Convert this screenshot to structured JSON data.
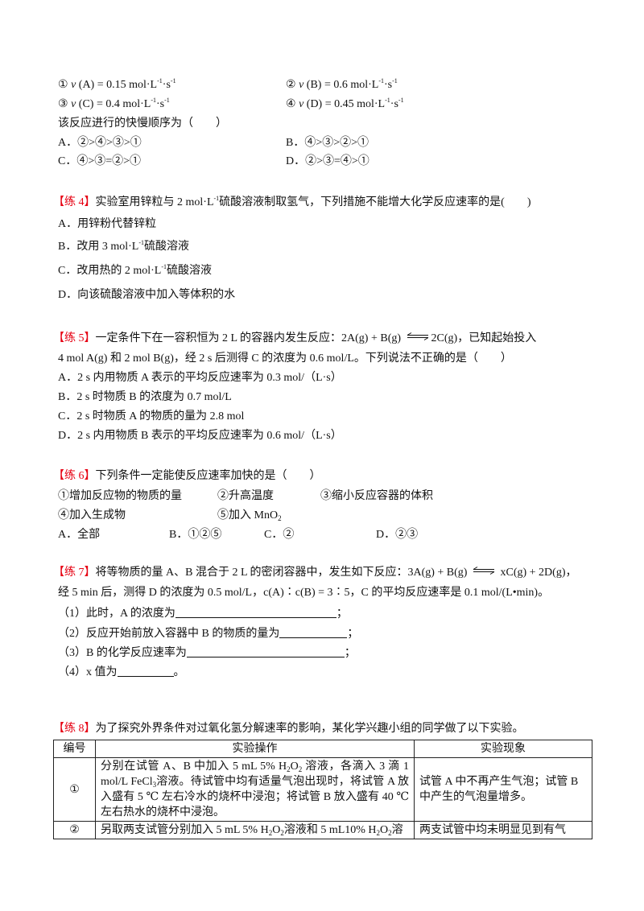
{
  "q3": {
    "items": [
      [
        {
          "t": "① "
        },
        {
          "i": "v"
        },
        {
          "t": "  (A) = 0.15 mol·L"
        },
        {
          "sup": "-1"
        },
        {
          "t": "·s"
        },
        {
          "sup": "-1"
        }
      ],
      [
        {
          "t": "② "
        },
        {
          "i": "v"
        },
        {
          "t": "  (B) = 0.6 mol·L"
        },
        {
          "sup": "-1"
        },
        {
          "t": "·s"
        },
        {
          "sup": "-1"
        }
      ],
      [
        {
          "t": "③ "
        },
        {
          "i": "v"
        },
        {
          "t": "  (C) = 0.4 mol·L"
        },
        {
          "sup": "-1"
        },
        {
          "t": "·s"
        },
        {
          "sup": "-1"
        }
      ],
      [
        {
          "t": "④ "
        },
        {
          "i": "v"
        },
        {
          "t": "  (D) = 0.45 mol·L"
        },
        {
          "sup": "-1"
        },
        {
          "t": "·s"
        },
        {
          "sup": "-1"
        }
      ]
    ],
    "question": "该反应进行的快慢顺序为（　　）",
    "options": [
      "A．②>④>③>①",
      "B．④>③>②>①",
      "C．④>③=②>①",
      "D．②>③=④>①"
    ]
  },
  "q4": {
    "label": "【练 4】",
    "stem": [
      {
        "t": "实验室用锌粒与 2 mol·L"
      },
      {
        "sup": "-1"
      },
      {
        "t": "硫酸溶液制取氢气，下列措施不能增大化学反应速率的是(　　)"
      }
    ],
    "options": [
      [
        {
          "t": "A．用锌粉代替锌粒"
        }
      ],
      [
        {
          "t": "B．改用 3 mol·L"
        },
        {
          "sup": "-1"
        },
        {
          "t": "硫酸溶液"
        }
      ],
      [
        {
          "t": "C．改用热的 2 mol·L"
        },
        {
          "sup": "-1"
        },
        {
          "t": "硫酸溶液"
        }
      ],
      [
        {
          "t": "D．向该硫酸溶液中加入等体积的水"
        }
      ]
    ]
  },
  "q5": {
    "label": "【练 5】",
    "stem1a": "一定条件下在一容积恒为 2 L 的容器内发生反应：2A(g) + B(g) ",
    "stem1b": "2C(g)，已知起始投入",
    "stem2": "4 mol A(g)  和 2 mol B(g)，经 2 s 后测得 C 的浓度为 0.6 mol/L。下列说法不正确的是（　　）",
    "options": [
      "A．2 s 内用物质 A 表示的平均反应速率为 0.3 mol/（L·s）",
      "B．2 s 时物质 B 的浓度为 0.7 mol/L",
      "C．2 s 时物质 A 的物质的量为 2.8 mol",
      "D．2 s 内用物质 B 表示的平均反应速率为 0.6 mol/（L·s）"
    ]
  },
  "q6": {
    "label": "【练 6】",
    "stem": "下列条件一定能使反应速率加快的是（　　）",
    "conds": [
      "①增加反应物的物质的量",
      "②升高温度",
      "③缩小反应容器的体积",
      "④加入生成物"
    ],
    "cond5": [
      {
        "t": "⑤加入 MnO"
      },
      {
        "sub": "2"
      }
    ],
    "options": [
      "A．全部",
      "B．①②⑤",
      "C．②",
      "D．②③"
    ]
  },
  "q7": {
    "label": "【练 7】",
    "stem1a": "将等物质的量 A、B 混合于 2 L 的密闭容器中，发生如下反应：3A(g) + B(g) ",
    "stem1b": " xC(g) + 2D(g)，",
    "stem2": "经 5 min 后，测得 D 的浓度为 0.5 mol/L，c(A)∶c(B) = 3∶5，C 的平均反应速率是 0.1 mol/(L•min)。",
    "parts": [
      {
        "text": "（1）此时，A 的浓度为",
        "end": "；"
      },
      {
        "text": "（2）反应开始前放入容器中 B 的物质的量为",
        "end": "；"
      },
      {
        "text": "（3）B 的化学反应速率为",
        "end": "；"
      },
      {
        "text": "（4）x 值为",
        "end": "。"
      }
    ]
  },
  "q8": {
    "label": "【练 8】",
    "stem": "为了探究外界条件对过氧化氢分解速率的影响，某化学兴趣小组的同学做了以下实验。",
    "headers": [
      "编号",
      "实验操作",
      "实验现象"
    ],
    "rows": [
      {
        "id": "①",
        "op": [
          {
            "t": "分别在试管 A、B 中加入 5 mL 5% H"
          },
          {
            "sub": "2"
          },
          {
            "t": "O"
          },
          {
            "sub": "2"
          },
          {
            "t": " 溶液，各滴入 3 滴 1 mol/L FeCl"
          },
          {
            "sub": "3"
          },
          {
            "t": "溶液。待试管中均有适量气泡出现时，将试管 A 放入盛有 5 ℃ 左右冷水的烧杯中浸泡；将试管 B 放入盛有 40 ℃ 左右热水的烧杯中浸泡。"
          }
        ],
        "result": "试管 A 中不再产生气泡；试管 B 中产生的气泡量增多。"
      },
      {
        "id": "②",
        "op": [
          {
            "t": "另取两支试管分别加入 5 mL 5% H"
          },
          {
            "sub": "2"
          },
          {
            "t": "O"
          },
          {
            "sub": "2"
          },
          {
            "t": "溶液和 5 mL10% H"
          },
          {
            "sub": "2"
          },
          {
            "t": "O"
          },
          {
            "sub": "2"
          },
          {
            "t": "溶"
          }
        ],
        "result": "两支试管中均未明显见到有气"
      }
    ]
  },
  "colors": {
    "label_red": "#e60012",
    "text": "#111111"
  }
}
